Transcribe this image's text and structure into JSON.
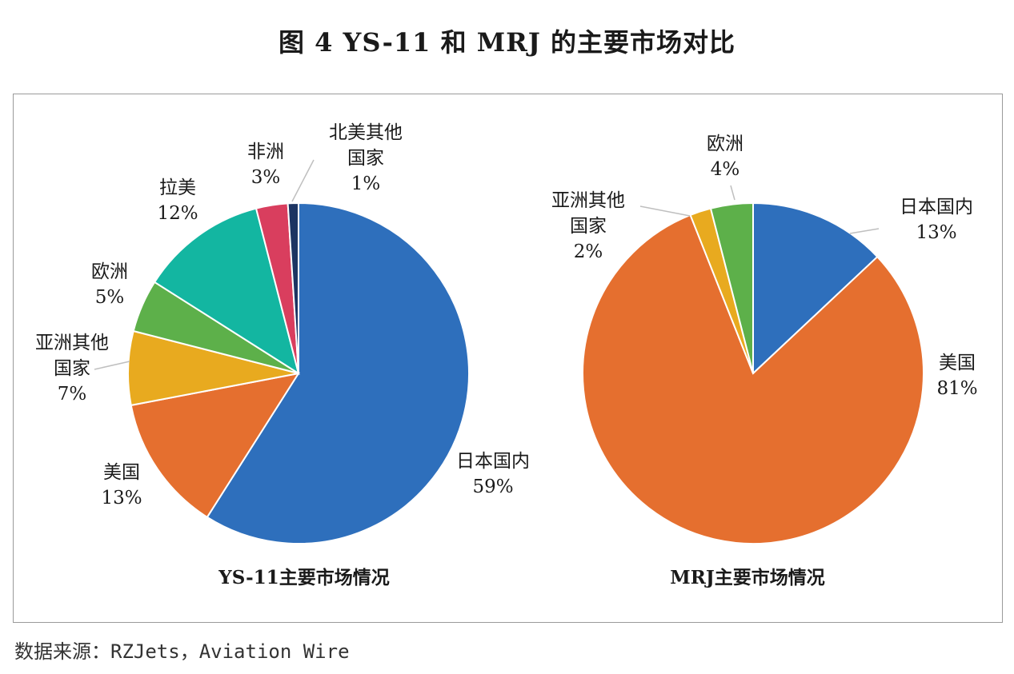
{
  "title": "图 4  YS-11 和 MRJ 的主要市场对比",
  "source": "数据来源：RZJets，Aviation Wire",
  "chart_data": [
    {
      "type": "pie",
      "title": "YS-11主要市场情况",
      "slices": [
        {
          "lines": [
            "日本国内"
          ],
          "pct_label": "59%",
          "value": 59,
          "color": "#2E6FBC"
        },
        {
          "lines": [
            "美国"
          ],
          "pct_label": "13%",
          "value": 13,
          "color": "#E56F2F"
        },
        {
          "lines": [
            "亚洲其他",
            "国家"
          ],
          "pct_label": "7%",
          "value": 7,
          "color": "#E8AA1F"
        },
        {
          "lines": [
            "欧洲"
          ],
          "pct_label": "5%",
          "value": 5,
          "color": "#5DB04A"
        },
        {
          "lines": [
            "拉美"
          ],
          "pct_label": "12%",
          "value": 12,
          "color": "#13B6A1"
        },
        {
          "lines": [
            "非洲"
          ],
          "pct_label": "3%",
          "value": 3,
          "color": "#D93E5E"
        },
        {
          "lines": [
            "北美其他",
            "国家"
          ],
          "pct_label": "1%",
          "value": 1,
          "color": "#1C3462"
        }
      ]
    },
    {
      "type": "pie",
      "title": "MRJ主要市场情况",
      "slices": [
        {
          "lines": [
            "日本国内"
          ],
          "pct_label": "13%",
          "value": 13,
          "color": "#2E6FBC"
        },
        {
          "lines": [
            "美国"
          ],
          "pct_label": "81%",
          "value": 81,
          "color": "#E56F2F"
        },
        {
          "lines": [
            "亚洲其他",
            "国家"
          ],
          "pct_label": "2%",
          "value": 2,
          "color": "#E8AA1F"
        },
        {
          "lines": [
            "欧洲"
          ],
          "pct_label": "4%",
          "value": 4,
          "color": "#5DB04A"
        }
      ]
    }
  ]
}
